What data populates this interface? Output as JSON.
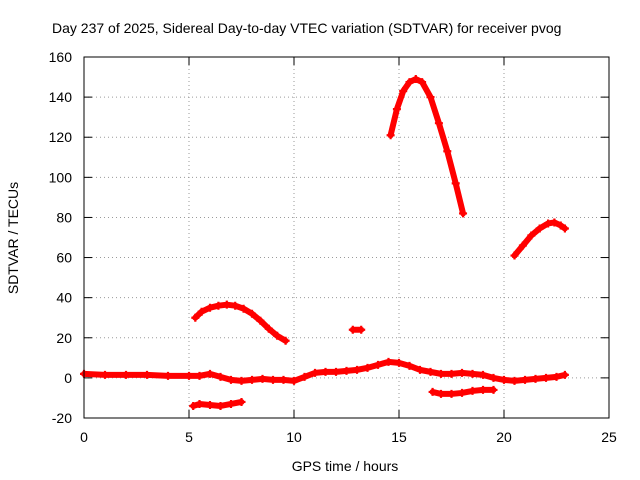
{
  "chart_data": {
    "type": "scatter",
    "title": "Day 237 of 2025, Sidereal Day-to-day VTEC variation (SDTVAR) for receiver pvog",
    "xlabel": "GPS time / hours",
    "ylabel": "SDTVAR / TECUs",
    "xlim": [
      0,
      25
    ],
    "ylim": [
      -20,
      160
    ],
    "xticks": [
      0,
      5,
      10,
      15,
      20,
      25
    ],
    "yticks": [
      -20,
      0,
      20,
      40,
      60,
      80,
      100,
      120,
      140,
      160
    ],
    "grid": true,
    "series_color": "#ff0000",
    "series": [
      {
        "name": "baseline",
        "x": [
          0,
          1,
          2,
          3,
          4,
          5,
          5.5,
          6,
          6.5,
          7,
          7.5,
          8,
          8.5,
          9,
          9.5,
          10,
          10.5,
          11,
          11.5,
          12,
          12.5,
          13,
          13.5,
          14,
          14.5,
          15,
          15.5,
          16,
          16.5,
          17,
          17.5,
          18,
          18.5,
          19,
          19.5,
          20,
          20.5,
          21,
          21.5,
          22,
          22.5,
          22.9
        ],
        "y": [
          2,
          1.5,
          1.5,
          1.5,
          1,
          1,
          1,
          2,
          0.5,
          -1,
          -1.5,
          -1,
          -0.5,
          -1,
          -1,
          -1.5,
          0.5,
          2.5,
          3,
          3,
          3.5,
          4,
          5,
          6.5,
          8,
          7.5,
          6,
          4,
          3,
          2,
          2,
          2.5,
          2,
          1.5,
          0,
          -1,
          -1.5,
          -1,
          -0.5,
          0,
          0.5,
          1.5
        ]
      },
      {
        "name": "arc-05-10",
        "x": [
          5.3,
          5.6,
          6,
          6.4,
          6.8,
          7.2,
          7.6,
          8,
          8.4,
          8.8,
          9.2,
          9.6
        ],
        "y": [
          30,
          33,
          35,
          36,
          36.5,
          36,
          34.5,
          32,
          28.5,
          24.5,
          21,
          18.5
        ]
      },
      {
        "name": "negative-05-075",
        "x": [
          5.2,
          5.5,
          6,
          6.5,
          7,
          7.5
        ],
        "y": [
          -14,
          -13,
          -13.5,
          -14,
          -13,
          -12
        ]
      },
      {
        "name": "blip-13",
        "x": [
          12.8,
          13.2
        ],
        "y": [
          24,
          24
        ]
      },
      {
        "name": "arc-145-18",
        "x": [
          14.6,
          14.9,
          15.2,
          15.5,
          15.8,
          16.1,
          16.5,
          16.9,
          17.3,
          17.7,
          18.05
        ],
        "y": [
          121,
          134,
          143,
          147.5,
          149,
          147.5,
          140,
          127,
          113,
          97,
          82
        ]
      },
      {
        "name": "negative-165-195",
        "x": [
          16.6,
          17,
          17.5,
          18,
          18.5,
          19,
          19.5
        ],
        "y": [
          -7,
          -8,
          -8,
          -7.5,
          -6.5,
          -6,
          -6
        ]
      },
      {
        "name": "arc-205-23",
        "x": [
          20.5,
          20.9,
          21.3,
          21.7,
          22.1,
          22.4,
          22.7,
          22.9
        ],
        "y": [
          61,
          66,
          71,
          74.5,
          77,
          77.5,
          76,
          74.5
        ]
      }
    ]
  }
}
